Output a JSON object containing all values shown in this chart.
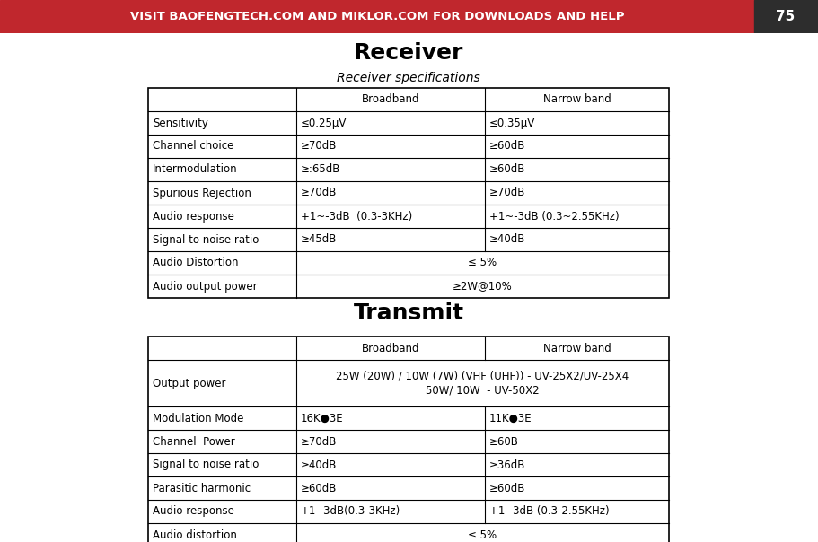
{
  "header_text": "VISIT BAOFENGTECH.COM AND MIKLOR.COM FOR DOWNLOADS AND HELP",
  "header_number": "75",
  "header_bg": "#c0272d",
  "header_num_bg": "#2d2d2d",
  "title_receiver": "Receiver",
  "subtitle_receiver": "Receiver specifications",
  "title_transmit": "Transmit",
  "receiver_table": {
    "header_row": [
      "",
      "Broadband",
      "Narrow band"
    ],
    "rows": [
      [
        "Sensitivity",
        "≤0.25μV",
        "≤0.35μV",
        false
      ],
      [
        "Channel choice",
        "≥70dB",
        "≥60dB",
        false
      ],
      [
        "Intermodulation",
        "≥:65dB",
        "≥60dB",
        false
      ],
      [
        "Spurious Rejection",
        "≥70dB",
        "≥70dB",
        false
      ],
      [
        "Audio response",
        "+1~-3dB  (0.3-3KHz)",
        "+1~-3dB (0.3~2.55KHz)",
        false
      ],
      [
        "Signal to noise ratio",
        "≥45dB",
        "≥40dB",
        false
      ],
      [
        "Audio Distortion",
        "≤ 5%",
        "",
        true
      ],
      [
        "Audio output power",
        "≥2W@10%",
        "",
        true
      ]
    ]
  },
  "transmit_table": {
    "header_row": [
      "",
      "Broadband",
      "Narrow band"
    ],
    "rows": [
      [
        "Output power",
        "25W (20W) / 10W (7W) (VHF (UHF)) - UV-25X2/UV-25X4\n50W/ 10W  - UV-50X2",
        "",
        true
      ],
      [
        "Modulation Mode",
        "16K●3E",
        "11K●3E",
        false
      ],
      [
        "Channel  Power",
        "≥70dB",
        "≥60B",
        false
      ],
      [
        "Signal to noise ratio",
        "≥40dB",
        "≥36dB",
        false
      ],
      [
        "Parasitic harmonic",
        "≥60dB",
        "≥60dB",
        false
      ],
      [
        "Audio response",
        "+1--3dB(0.3-3KHz)",
        "+1--3dB (0.3-2.55KHz)",
        false
      ],
      [
        "Audio distortion",
        "≤ 5%",
        "",
        true
      ]
    ]
  },
  "bg_color": "#ffffff",
  "table_line_color": "#000000"
}
